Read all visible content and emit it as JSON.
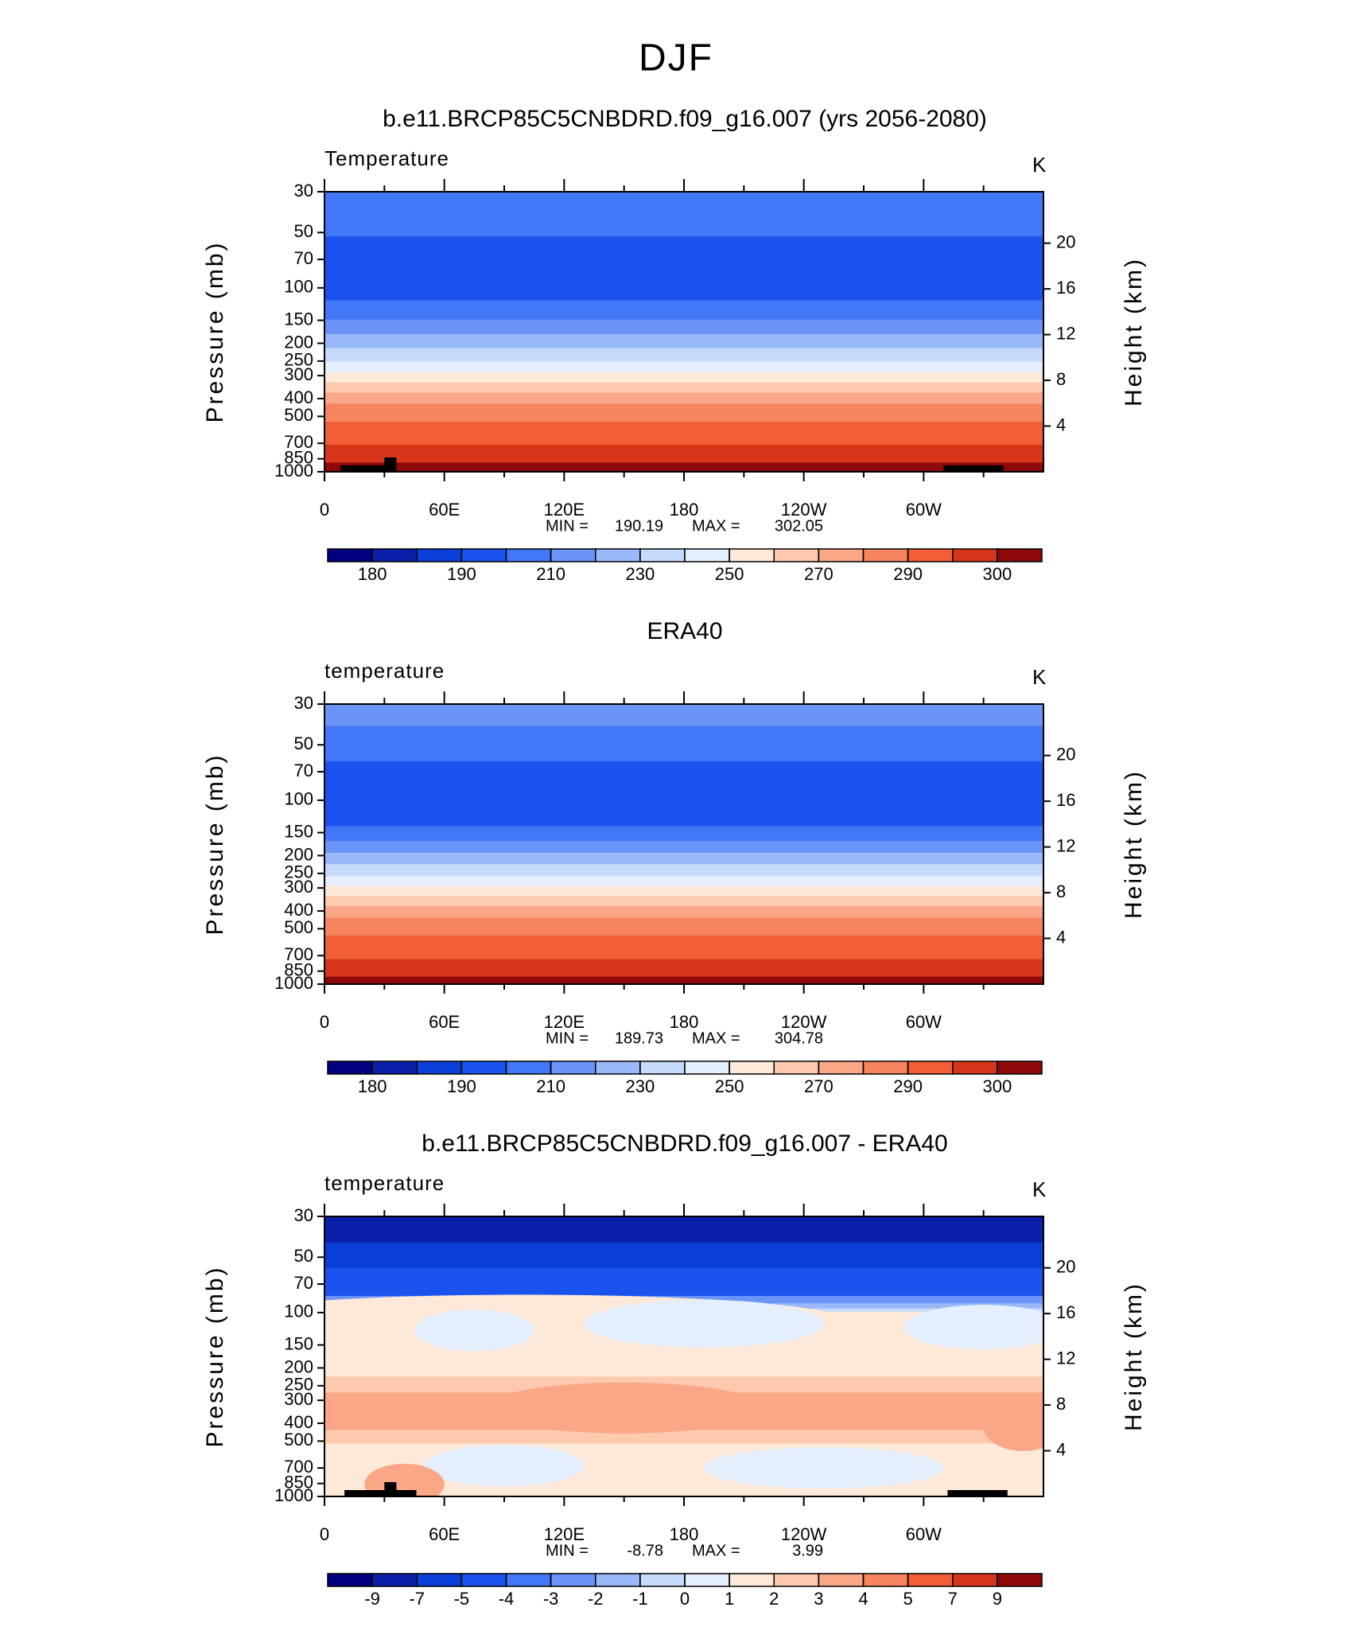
{
  "figure_title": "DJF",
  "chart_data": [
    {
      "type": "contour",
      "title": "b.e11.BRCP85C5CNBDRD.f09_g16.007 (yrs 2056-2080)",
      "left_label": "Temperature",
      "right_label": "K",
      "ylabel": "Pressure (mb)",
      "y2label": "Height (km)",
      "log_scale": true,
      "ylim": [
        1000,
        30
      ],
      "yticks": [
        30,
        50,
        70,
        100,
        150,
        200,
        250,
        300,
        400,
        500,
        700,
        850,
        1000
      ],
      "y2lim": [
        0,
        24.5
      ],
      "y2ticks": [
        4,
        8,
        12,
        16,
        20
      ],
      "xlim": [
        0,
        360
      ],
      "xticks": [
        0,
        {
          "value": 60,
          "label": "60E"
        },
        {
          "value": 120,
          "label": "120E"
        },
        180,
        {
          "value": 240,
          "label": "120W"
        },
        {
          "value": 300,
          "label": "60W"
        }
      ],
      "min_label": "MIN =",
      "min": 190.19,
      "max_label": "MAX =",
      "max": 302.05,
      "colorbar": {
        "colors": [
          "#000080",
          "#0a1fa8",
          "#0a3fd8",
          "#1b53ef",
          "#4277f6",
          "#6a94f7",
          "#98b8f8",
          "#c6dafa",
          "#e4eefc",
          "#fde9d9",
          "#fccaae",
          "#f9a787",
          "#f5845f",
          "#f25f36",
          "#d7361a",
          "#8e0a0a"
        ],
        "ticks": [
          180,
          190,
          210,
          230,
          250,
          270,
          290,
          300
        ]
      }
    },
    {
      "type": "contour",
      "title": "ERA40",
      "left_label": "temperature",
      "right_label": "K",
      "ylabel": "Pressure (mb)",
      "y2label": "Height (km)",
      "log_scale": true,
      "ylim": [
        1000,
        30
      ],
      "yticks": [
        30,
        50,
        70,
        100,
        150,
        200,
        250,
        300,
        400,
        500,
        700,
        850,
        1000
      ],
      "y2lim": [
        0,
        24.5
      ],
      "y2ticks": [
        4,
        8,
        12,
        16,
        20
      ],
      "xlim": [
        0,
        360
      ],
      "xticks": [
        0,
        {
          "value": 60,
          "label": "60E"
        },
        {
          "value": 120,
          "label": "120E"
        },
        180,
        {
          "value": 240,
          "label": "120W"
        },
        {
          "value": 300,
          "label": "60W"
        }
      ],
      "min_label": "MIN =",
      "min": 189.73,
      "max_label": "MAX =",
      "max": 304.78,
      "colorbar": {
        "colors": [
          "#000080",
          "#0a1fa8",
          "#0a3fd8",
          "#1b53ef",
          "#4277f6",
          "#6a94f7",
          "#98b8f8",
          "#c6dafa",
          "#e4eefc",
          "#fde9d9",
          "#fccaae",
          "#f9a787",
          "#f5845f",
          "#f25f36",
          "#d7361a",
          "#8e0a0a"
        ],
        "ticks": [
          180,
          190,
          210,
          230,
          250,
          270,
          290,
          300
        ]
      }
    },
    {
      "type": "contour",
      "title": "b.e11.BRCP85C5CNBDRD.f09_g16.007 - ERA40",
      "left_label": "temperature",
      "right_label": "K",
      "ylabel": "Pressure (mb)",
      "y2label": "Height (km)",
      "log_scale": true,
      "ylim": [
        1000,
        30
      ],
      "yticks": [
        30,
        50,
        70,
        100,
        150,
        200,
        250,
        300,
        400,
        500,
        700,
        850,
        1000
      ],
      "y2lim": [
        0,
        24.5
      ],
      "y2ticks": [
        4,
        8,
        12,
        16,
        20
      ],
      "xlim": [
        0,
        360
      ],
      "xticks": [
        0,
        {
          "value": 60,
          "label": "60E"
        },
        {
          "value": 120,
          "label": "120E"
        },
        180,
        {
          "value": 240,
          "label": "120W"
        },
        {
          "value": 300,
          "label": "60W"
        }
      ],
      "min_label": "MIN =",
      "min": -8.78,
      "max_label": "MAX =",
      "max": 3.99,
      "colorbar": {
        "colors": [
          "#000080",
          "#0a1fa8",
          "#0a3fd8",
          "#1b53ef",
          "#4277f6",
          "#6a94f7",
          "#98b8f8",
          "#c6dafa",
          "#e4eefc",
          "#fde9d9",
          "#fccaae",
          "#f9a787",
          "#f5845f",
          "#f25f36",
          "#d7361a",
          "#8e0a0a"
        ],
        "ticks": [
          -9,
          -7,
          -5,
          -4,
          -3,
          -2,
          -1,
          0,
          1,
          2,
          3,
          4,
          5,
          7,
          9
        ]
      }
    }
  ]
}
